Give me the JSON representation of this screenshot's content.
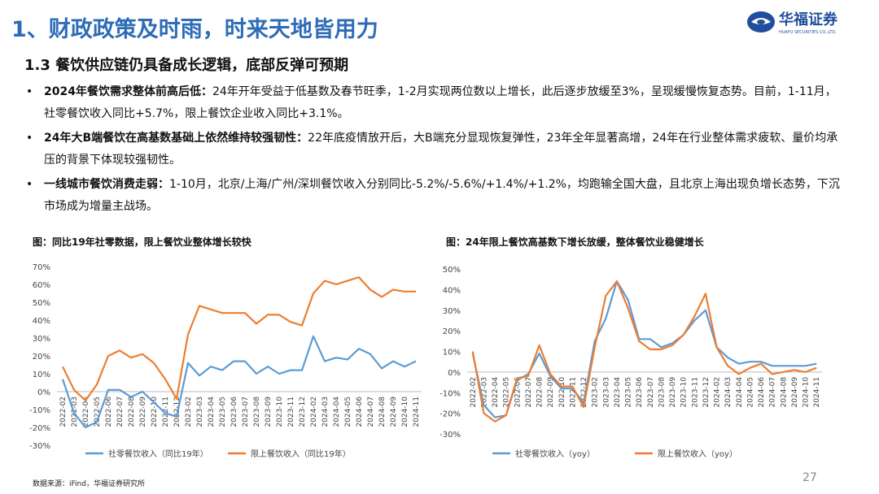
{
  "header": {
    "title": "1、财政政策及时雨，时来天地皆用力",
    "logo_cn": "华福证券",
    "logo_en": "HUAFU SECURITIES CO.,LTD."
  },
  "section_title": "1.3 餐饮供应链仍具备成长逻辑，底部反弹可预期",
  "bullets": [
    {
      "lead": "2024年餐饮需求整体前高后低：",
      "text": "24年开年受益于低基数及春节旺季，1-2月实现两位数以上增长，此后逐步放缓至3%，呈现缓慢恢复态势。目前，1-11月，社零餐饮收入同比+5.7%，限上餐饮企业收入同比+3.1%。"
    },
    {
      "lead": "24年大B端餐饮在高基数基础上依然维持较强韧性：",
      "text": "22年底疫情放开后，大B端充分显现恢复弹性，23年全年显著高增，24年在行业整体需求疲软、量价均承压的背景下体现较强韧性。"
    },
    {
      "lead": "一线城市餐饮消费走弱：",
      "text": "1-10月，北京/上海/广州/深圳餐饮收入分别同比-5.2%/-5.6%/+1.4%/+1.2%，均跑输全国大盘，且北京上海出现负增长态势，下沉市场成为增量主战场。"
    }
  ],
  "chart_data": [
    {
      "type": "line",
      "title": "图：同比19年社零数据，限上餐饮业整体增长较快",
      "categories": [
        "2022-02",
        "2022-03",
        "2022-04",
        "2022-05",
        "2022-06",
        "2022-07",
        "2022-08",
        "2022-09",
        "2022-10",
        "2022-11",
        "2022-12",
        "2023-02",
        "2023-03",
        "2023-04",
        "2023-05",
        "2023-06",
        "2023-07",
        "2023-08",
        "2023-09",
        "2023-10",
        "2023-11",
        "2023-12",
        "2024-02",
        "2024-03",
        "2024-04",
        "2024-05",
        "2024-06",
        "2024-07",
        "2024-08",
        "2024-09",
        "2024-10",
        "2024-11"
      ],
      "series": [
        {
          "name": "社零餐饮收入（同比19年）",
          "color": "#5b9bd5",
          "values": [
            7,
            -12,
            -20,
            -17,
            1,
            1,
            -3,
            0,
            -6,
            -12,
            -14,
            16,
            9,
            14,
            12,
            17,
            17,
            10,
            14,
            10,
            12,
            12,
            31,
            17,
            19,
            18,
            24,
            21,
            13,
            17,
            14,
            17
          ]
        },
        {
          "name": "限上餐饮收入（同比19年）",
          "color": "#ed7d31",
          "values": [
            14,
            1,
            -5,
            4,
            20,
            23,
            19,
            21,
            16,
            7,
            -4,
            32,
            48,
            46,
            44,
            44,
            44,
            38,
            43,
            43,
            39,
            37,
            55,
            62,
            60,
            62,
            64,
            57,
            53,
            57,
            56,
            56
          ]
        }
      ],
      "ylim": [
        -30,
        70
      ],
      "yticks": [
        {
          "value": -30,
          "label": "-30%"
        },
        {
          "value": -20,
          "label": "-20%"
        },
        {
          "value": -10,
          "label": "-10%"
        },
        {
          "value": 0,
          "label": "0%"
        },
        {
          "value": 10,
          "label": "10%"
        },
        {
          "value": 20,
          "label": "20%"
        },
        {
          "value": 30,
          "label": "30%"
        },
        {
          "value": 40,
          "label": "40%"
        },
        {
          "value": 50,
          "label": "50%"
        },
        {
          "value": 60,
          "label": "60%"
        },
        {
          "value": 70,
          "label": "70%"
        }
      ]
    },
    {
      "type": "line",
      "title": "图：24年限上餐饮高基数下增长放缓，整体餐饮业稳健增长",
      "categories": [
        "2022-02",
        "2022-03",
        "2022-04",
        "2022-05",
        "2022-06",
        "2022-07",
        "2022-08",
        "2022-09",
        "2022-10",
        "2022-11",
        "2022-12",
        "2023-02",
        "2023-03",
        "2023-04",
        "2023-05",
        "2023-06",
        "2023-07",
        "2023-08",
        "2023-09",
        "2023-10",
        "2023-11",
        "2023-12",
        "2024-02",
        "2024-03",
        "2024-04",
        "2024-05",
        "2024-06",
        "2024-07",
        "2024-08",
        "2024-09",
        "2024-10",
        "2024-11"
      ],
      "series": [
        {
          "name": "社零餐饮收入（yoy）",
          "color": "#5b9bd5",
          "values": [
            9,
            -16,
            -22,
            -21,
            -4,
            -1,
            9,
            -2,
            -8,
            -8,
            -15,
            15,
            26,
            44,
            35,
            16,
            16,
            12,
            14,
            18,
            25,
            30,
            12,
            7,
            4,
            5,
            5,
            3,
            3,
            3,
            3,
            4
          ]
        },
        {
          "name": "限上餐饮收入（yoy）",
          "color": "#ed7d31",
          "values": [
            10,
            -20,
            -24,
            -21,
            -3,
            -2,
            13,
            -1,
            -7,
            -7,
            -17,
            12,
            37,
            44,
            31,
            15,
            11,
            11,
            13,
            18,
            27,
            38,
            12,
            3,
            -1,
            2,
            4,
            -1,
            0,
            1,
            0,
            2
          ]
        }
      ],
      "ylim": [
        -30,
        50
      ],
      "yticks": [
        {
          "value": -30,
          "label": "-30%"
        },
        {
          "value": -20,
          "label": "-20%"
        },
        {
          "value": -10,
          "label": "-10%"
        },
        {
          "value": 0,
          "label": "0%"
        },
        {
          "value": 10,
          "label": "10%"
        },
        {
          "value": 20,
          "label": "20%"
        },
        {
          "value": 30,
          "label": "30%"
        },
        {
          "value": 40,
          "label": "40%"
        },
        {
          "value": 50,
          "label": "50%"
        }
      ]
    }
  ],
  "source": "数据来源：iFind，华福证券研究所",
  "page_number": "27"
}
